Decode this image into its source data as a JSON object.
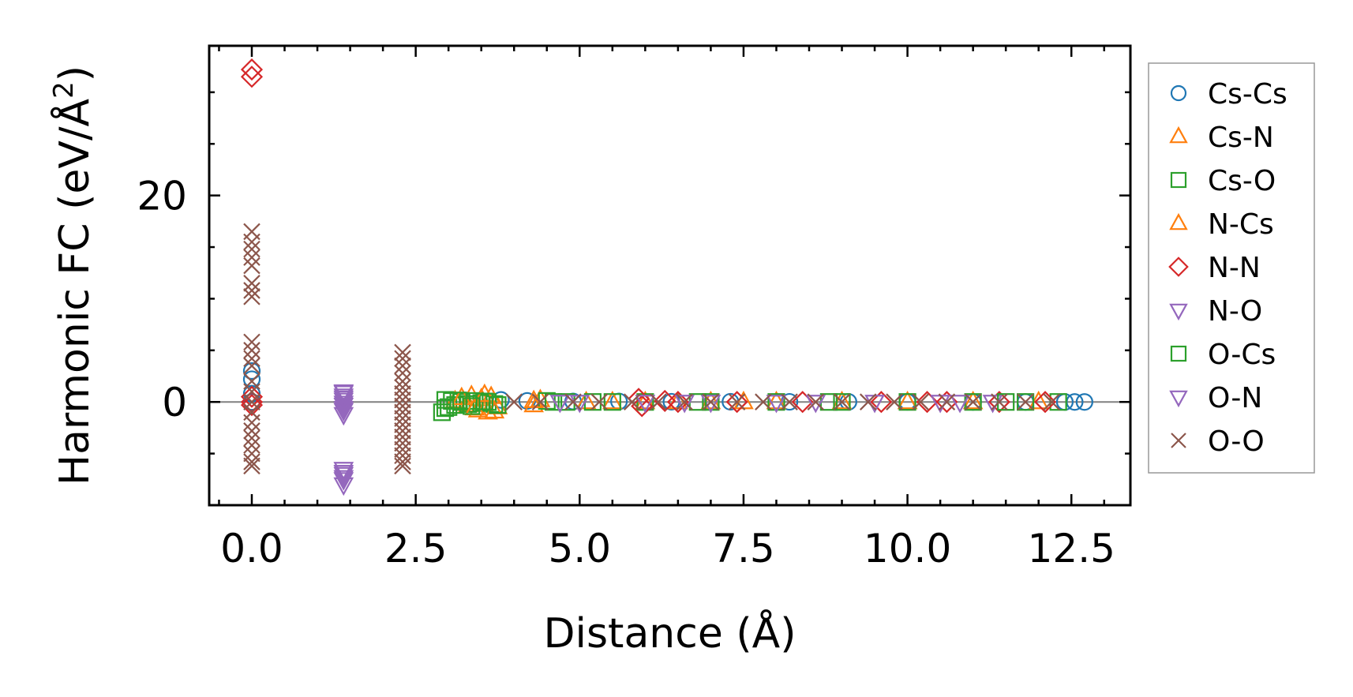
{
  "chart_data": {
    "type": "scatter",
    "xlabel": "Distance (Å)",
    "ylabel_main": "Harmonic FC (eV/Å",
    "ylabel_sup": "2",
    "ylabel_end": ")",
    "xlim": [
      -0.65,
      13.4
    ],
    "ylim": [
      -10,
      34.5
    ],
    "xticks": [
      0.0,
      2.5,
      5.0,
      7.5,
      10.0,
      12.5
    ],
    "xtick_labels": [
      "0.0",
      "2.5",
      "5.0",
      "7.5",
      "10.0",
      "12.5"
    ],
    "xminor_step": 0.5,
    "yticks": [
      0,
      20
    ],
    "ytick_labels": [
      "0",
      "20"
    ],
    "yminor_step": 5,
    "zero_line": true,
    "grid": false,
    "legend_position": "outside-right",
    "series": [
      {
        "name": "Cs-Cs",
        "marker": "circle",
        "color": "#1f77b4",
        "points": [
          [
            0,
            3.0
          ],
          [
            0,
            2.2
          ],
          [
            0,
            0.8
          ],
          [
            0,
            0
          ],
          [
            3.8,
            0.2
          ],
          [
            4.2,
            0.1
          ],
          [
            4.9,
            0.05
          ],
          [
            5.6,
            0.05
          ],
          [
            6.4,
            0.02
          ],
          [
            7.3,
            0.02
          ],
          [
            8.2,
            0.01
          ],
          [
            9.1,
            0.01
          ],
          [
            10.0,
            0.01
          ],
          [
            11.0,
            0.0
          ],
          [
            11.8,
            0.0
          ],
          [
            12.4,
            0.0
          ],
          [
            12.55,
            0.0
          ],
          [
            12.7,
            0.0
          ]
        ]
      },
      {
        "name": "Cs-N",
        "marker": "triangle-up",
        "color": "#ff7f0e",
        "points": [
          [
            3.1,
            0.1
          ],
          [
            3.3,
            -0.3
          ],
          [
            3.35,
            0.6
          ],
          [
            3.45,
            -0.8
          ],
          [
            3.5,
            0.3
          ],
          [
            3.6,
            -1.0
          ],
          [
            3.65,
            0.5
          ],
          [
            3.75,
            -0.5
          ],
          [
            4.3,
            -0.3
          ],
          [
            4.4,
            0.2
          ],
          [
            5.1,
            0.0
          ],
          [
            6.0,
            0.0
          ],
          [
            7.0,
            0.0
          ],
          [
            8.0,
            0.0
          ],
          [
            9.0,
            0.0
          ],
          [
            10.0,
            0.0
          ],
          [
            11.0,
            0.0
          ],
          [
            12.0,
            0.0
          ]
        ]
      },
      {
        "name": "Cs-O",
        "marker": "square",
        "color": "#2ca02c",
        "points": [
          [
            2.9,
            -1.0
          ],
          [
            2.95,
            0.2
          ],
          [
            3.0,
            -0.5
          ],
          [
            3.05,
            0.1
          ],
          [
            3.1,
            -0.3
          ],
          [
            3.2,
            0.0
          ],
          [
            3.3,
            -0.2
          ],
          [
            3.4,
            0.1
          ],
          [
            3.5,
            -0.1
          ],
          [
            3.6,
            0.0
          ],
          [
            3.7,
            -0.2
          ],
          [
            4.5,
            0.1
          ],
          [
            4.8,
            0.0
          ],
          [
            5.2,
            0.0
          ],
          [
            6.0,
            0.0
          ],
          [
            7.0,
            0.0
          ],
          [
            8.0,
            0.0
          ],
          [
            9.0,
            0.0
          ],
          [
            10.0,
            0.0
          ],
          [
            11.0,
            0.0
          ],
          [
            11.8,
            0.0
          ],
          [
            12.3,
            0.0
          ]
        ]
      },
      {
        "name": "N-Cs",
        "marker": "triangle-up",
        "color": "#ff7f0e",
        "points": [
          [
            3.2,
            0.4
          ],
          [
            3.4,
            -0.6
          ],
          [
            3.55,
            0.7
          ],
          [
            3.7,
            -0.9
          ],
          [
            4.3,
            0.1
          ],
          [
            5.5,
            0.0
          ],
          [
            6.5,
            0.0
          ],
          [
            7.5,
            0.0
          ]
        ]
      },
      {
        "name": "N-N",
        "marker": "diamond",
        "color": "#d62728",
        "points": [
          [
            0,
            32.2
          ],
          [
            0,
            31.5
          ],
          [
            0,
            0.5
          ],
          [
            0,
            -0.3
          ],
          [
            0,
            0
          ],
          [
            5.9,
            0.3
          ],
          [
            5.95,
            -0.4
          ],
          [
            6.3,
            0.1
          ],
          [
            6.5,
            0.0
          ],
          [
            7.4,
            0.0
          ],
          [
            8.4,
            0.0
          ],
          [
            9.6,
            0.0
          ],
          [
            10.3,
            0.0
          ],
          [
            10.6,
            0.0
          ],
          [
            11.4,
            0.0
          ],
          [
            12.1,
            0.0
          ]
        ]
      },
      {
        "name": "N-O",
        "marker": "triangle-down",
        "color": "#9467bd",
        "points": [
          [
            1.4,
            1.0
          ],
          [
            1.4,
            0.6
          ],
          [
            1.4,
            0.2
          ],
          [
            1.4,
            -0.3
          ],
          [
            1.4,
            -0.8
          ],
          [
            1.4,
            -1.2
          ],
          [
            1.4,
            -6.5
          ],
          [
            1.4,
            -7.0
          ],
          [
            1.4,
            -7.5
          ],
          [
            1.4,
            -8.0
          ],
          [
            5.0,
            0.0
          ],
          [
            6.0,
            0.0
          ],
          [
            7.0,
            0.0
          ],
          [
            8.0,
            0.0
          ],
          [
            9.5,
            0.0
          ],
          [
            10.5,
            0.0
          ],
          [
            11.3,
            0.0
          ]
        ]
      },
      {
        "name": "O-Cs",
        "marker": "square",
        "color": "#2ca02c",
        "points": [
          [
            2.95,
            -0.6
          ],
          [
            3.15,
            0.15
          ],
          [
            3.35,
            -0.4
          ],
          [
            3.55,
            0.05
          ],
          [
            3.75,
            -0.3
          ],
          [
            4.6,
            0.0
          ],
          [
            5.5,
            0.0
          ],
          [
            6.8,
            0.0
          ],
          [
            8.8,
            0.0
          ],
          [
            11.5,
            0.0
          ]
        ]
      },
      {
        "name": "O-N",
        "marker": "triangle-down",
        "color": "#9467bd",
        "points": [
          [
            1.4,
            0.9
          ],
          [
            1.4,
            0.4
          ],
          [
            1.4,
            -0.1
          ],
          [
            1.4,
            -0.6
          ],
          [
            1.4,
            -6.8
          ],
          [
            1.4,
            -7.3
          ],
          [
            4.7,
            0.0
          ],
          [
            6.6,
            0.0
          ],
          [
            8.6,
            0.0
          ],
          [
            10.8,
            0.0
          ]
        ]
      },
      {
        "name": "O-O",
        "marker": "x",
        "color": "#8c564b",
        "points": [
          [
            0,
            16.5
          ],
          [
            0,
            15.5
          ],
          [
            0,
            14.8
          ],
          [
            0,
            14.0
          ],
          [
            0,
            13.2
          ],
          [
            0,
            11.5
          ],
          [
            0,
            10.8
          ],
          [
            0,
            10.2
          ],
          [
            0,
            5.8
          ],
          [
            0,
            5.0
          ],
          [
            0,
            4.2
          ],
          [
            0,
            3.5
          ],
          [
            0,
            2.0
          ],
          [
            0,
            1.0
          ],
          [
            0,
            0
          ],
          [
            0,
            -1.0
          ],
          [
            0,
            -2.0
          ],
          [
            0,
            -2.8
          ],
          [
            0,
            -3.5
          ],
          [
            0,
            -4.2
          ],
          [
            0,
            -5.0
          ],
          [
            0,
            -5.8
          ],
          [
            0,
            -6.2
          ],
          [
            2.3,
            4.8
          ],
          [
            2.3,
            4.2
          ],
          [
            2.3,
            3.5
          ],
          [
            2.3,
            2.8
          ],
          [
            2.3,
            2.0
          ],
          [
            2.3,
            1.4
          ],
          [
            2.3,
            0.8
          ],
          [
            2.3,
            0.2
          ],
          [
            2.3,
            -0.4
          ],
          [
            2.3,
            -1.0
          ],
          [
            2.3,
            -1.6
          ],
          [
            2.3,
            -2.2
          ],
          [
            2.3,
            -2.8
          ],
          [
            2.3,
            -3.4
          ],
          [
            2.3,
            -4.0
          ],
          [
            2.3,
            -4.6
          ],
          [
            2.3,
            -5.2
          ],
          [
            2.3,
            -5.8
          ],
          [
            2.3,
            -6.2
          ],
          [
            4.0,
            0.0
          ],
          [
            4.4,
            0.0
          ],
          [
            4.9,
            0.0
          ],
          [
            5.3,
            0.0
          ],
          [
            5.8,
            0.0
          ],
          [
            6.2,
            0.0
          ],
          [
            6.6,
            0.0
          ],
          [
            7.0,
            0.0
          ],
          [
            7.4,
            0.0
          ],
          [
            7.8,
            0.0
          ],
          [
            8.2,
            0.0
          ],
          [
            8.6,
            0.0
          ],
          [
            9.0,
            0.0
          ],
          [
            9.4,
            0.0
          ],
          [
            9.8,
            0.0
          ],
          [
            10.2,
            0.0
          ],
          [
            10.6,
            0.0
          ],
          [
            11.0,
            0.0
          ],
          [
            11.4,
            0.0
          ],
          [
            11.8,
            0.0
          ],
          [
            12.2,
            0.0
          ]
        ]
      }
    ]
  }
}
